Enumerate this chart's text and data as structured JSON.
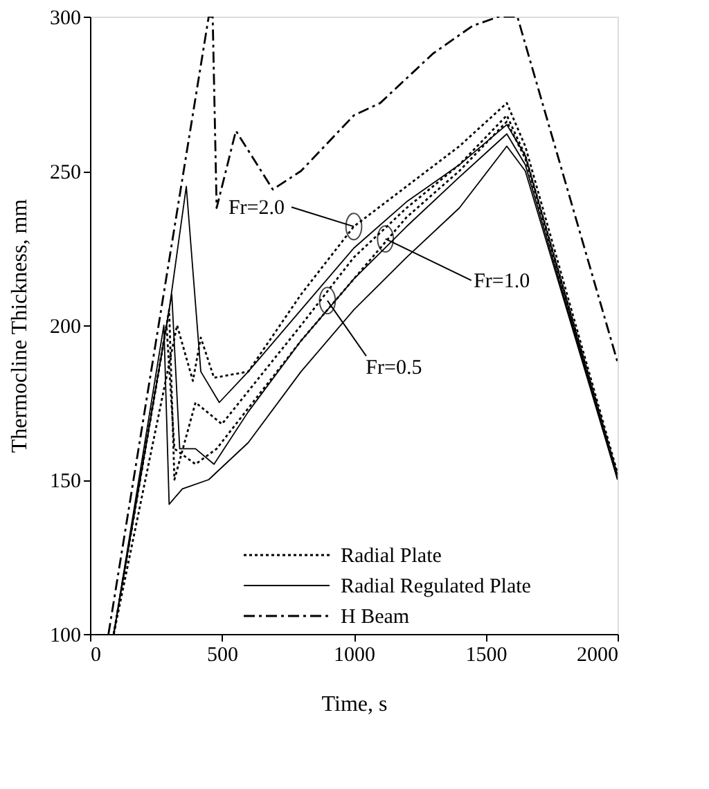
{
  "chart_data": {
    "type": "line",
    "xlabel": "Time, s",
    "ylabel": "Thermocline Thickness, mm",
    "xlim": [
      0,
      2000
    ],
    "xticks": [
      0,
      500,
      1000,
      1500,
      2000
    ],
    "ylim": [
      100,
      300
    ],
    "yticks": [
      100,
      150,
      200,
      250,
      300
    ],
    "grid": false,
    "legend": "bottom right",
    "marker": "none",
    "series": [
      {
        "name": "Radial Plate",
        "color": "#000000",
        "line_style": "dotted",
        "x": [
          90,
          330,
          390,
          420,
          470,
          600,
          800,
          1000,
          1200,
          1400,
          1580,
          1650,
          2000
        ],
        "values": [
          100,
          200,
          182,
          196,
          183,
          185,
          210,
          232,
          245,
          258,
          272,
          258,
          152
        ]
      },
      {
        "color": "#000000",
        "line_style": "dotted",
        "x": [
          90,
          300,
          320,
          400,
          500,
          800,
          1000,
          1200,
          1400,
          1580,
          1650,
          2000
        ],
        "values": [
          100,
          205,
          150,
          175,
          168,
          200,
          222,
          238,
          252,
          268,
          255,
          151
        ]
      },
      {
        "color": "#000000",
        "line_style": "dotted",
        "x": [
          90,
          290,
          320,
          400,
          480,
          800,
          1000,
          1200,
          1400,
          1580,
          1650,
          2000
        ],
        "values": [
          100,
          200,
          160,
          155,
          160,
          195,
          215,
          235,
          250,
          266,
          254,
          151
        ]
      },
      {
        "name": "Radial Regulated Plate",
        "color": "#000000",
        "line_style": "solid",
        "x": [
          90,
          300,
          365,
          420,
          490,
          600,
          800,
          1000,
          1200,
          1400,
          1580,
          1650,
          2000
        ],
        "values": [
          100,
          205,
          245,
          185,
          175,
          185,
          205,
          225,
          240,
          252,
          265,
          255,
          150
        ]
      },
      {
        "color": "#000000",
        "line_style": "solid",
        "x": [
          90,
          280,
          300,
          350,
          450,
          600,
          800,
          1000,
          1200,
          1400,
          1580,
          1650,
          2000
        ],
        "values": [
          100,
          200,
          142,
          147,
          150,
          162,
          185,
          205,
          222,
          238,
          258,
          250,
          150
        ]
      },
      {
        "color": "#000000",
        "line_style": "solid",
        "x": [
          90,
          310,
          340,
          400,
          470,
          600,
          800,
          1000,
          1200,
          1400,
          1580,
          1650,
          2000
        ],
        "values": [
          100,
          210,
          160,
          160,
          155,
          172,
          195,
          215,
          232,
          248,
          262,
          252,
          150
        ]
      },
      {
        "name": "H Beam",
        "color": "#000000",
        "line_style": "dashdot",
        "x": [
          70,
          450,
          465,
          480,
          553,
          693,
          800,
          1000,
          1100,
          1200,
          1300,
          1450,
          1550,
          1620,
          2000
        ],
        "values": [
          100,
          300,
          300,
          238,
          263,
          244,
          250,
          268,
          272,
          280,
          288,
          297,
          300,
          300,
          188
        ]
      }
    ],
    "annotations": [
      {
        "text": "Fr=2.0",
        "x": 1000,
        "y": 232
      },
      {
        "text": "Fr=1.0",
        "x": 1120,
        "y": 228
      },
      {
        "text": "Fr=0.5",
        "x": 900,
        "y": 208
      }
    ]
  }
}
